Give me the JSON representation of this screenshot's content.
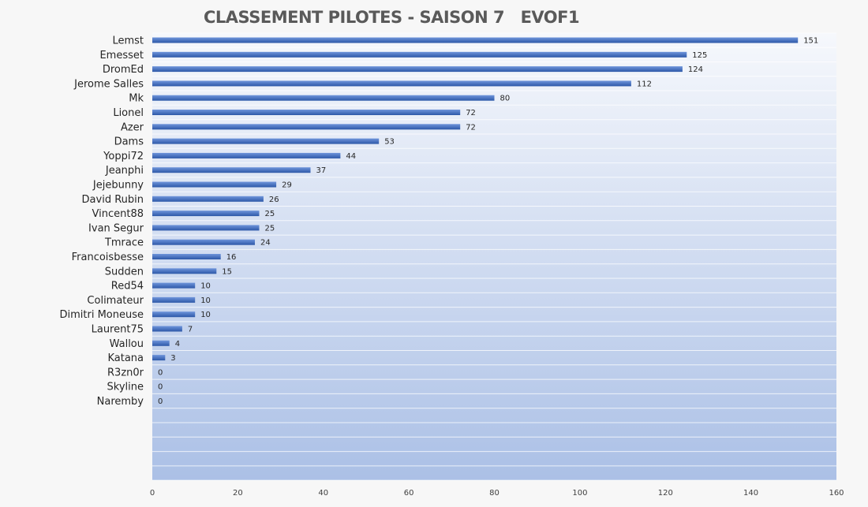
{
  "chart_data": {
    "type": "bar",
    "orientation": "horizontal",
    "title": "CLASSEMENT PILOTES - SAISON 7   EVOF1",
    "categories": [
      "Lemst",
      "Emesset",
      "DromEd",
      "Jerome Salles",
      "Mk",
      "Lionel",
      "Azer",
      "Dams",
      "Yoppi72",
      "Jeanphi",
      "Jejebunny",
      "David Rubin",
      "Vincent88",
      "Ivan Segur",
      "Tmrace",
      "Francoisbesse",
      "Sudden",
      "Red54",
      "Colimateur",
      "Dimitri Moneuse",
      "Laurent75",
      "Wallou",
      "Katana",
      "R3zn0r",
      "Skyline",
      "Naremby"
    ],
    "values": [
      151,
      125,
      124,
      112,
      80,
      72,
      72,
      53,
      44,
      37,
      29,
      26,
      25,
      25,
      24,
      16,
      15,
      10,
      10,
      10,
      7,
      4,
      3,
      0,
      0,
      0
    ],
    "xlim": [
      0,
      160
    ],
    "xticks": [
      0,
      20,
      40,
      60,
      80,
      100,
      120,
      140,
      160
    ],
    "grid": true,
    "legend": "none",
    "colors": {
      "bar_top": "#6f95db",
      "bar_bottom": "#2d58a8",
      "plot_top": "#f6f8fc",
      "plot_bottom": "#abc0e6",
      "title": "#5a5a5a"
    }
  }
}
